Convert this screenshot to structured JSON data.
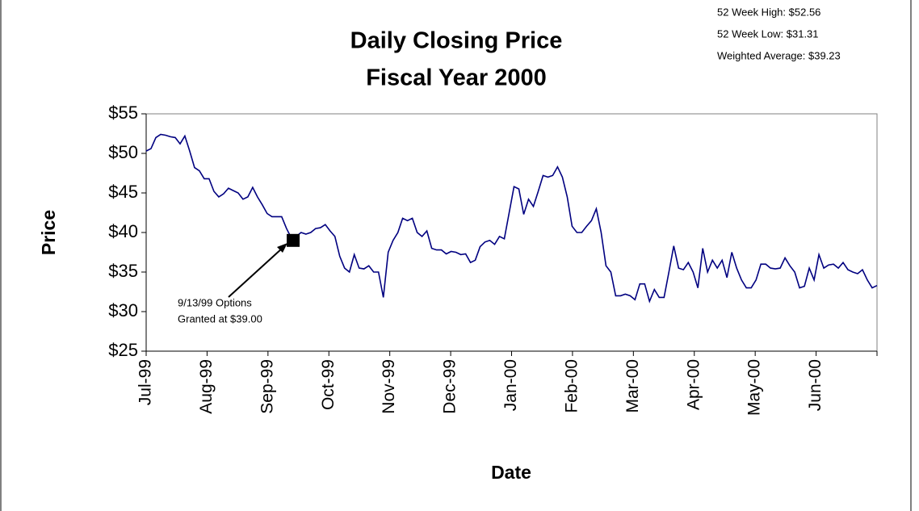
{
  "chart_data": {
    "type": "line",
    "title": [
      "Daily Closing Price",
      "Fiscal Year 2000"
    ],
    "stats": [
      "52 Week High: $52.56",
      "52 Week Low: $31.31",
      "Weighted Average: $39.23"
    ],
    "x_label": "Date",
    "y_label": "Price",
    "xticks": [
      "Jul-99",
      "Aug-99",
      "Sep-99",
      "Oct-99",
      "Nov-99",
      "Dec-99",
      "Jan-00",
      "Feb-00",
      "Mar-00",
      "Apr-00",
      "May-00",
      "Jun-00"
    ],
    "ylim": [
      25,
      55
    ],
    "yticks": [
      {
        "value": 25,
        "label": "$25"
      },
      {
        "value": 30,
        "label": "$30"
      },
      {
        "value": 35,
        "label": "$35"
      },
      {
        "value": 40,
        "label": "$40"
      },
      {
        "value": 45,
        "label": "$45"
      },
      {
        "value": 50,
        "label": "$50"
      },
      {
        "value": 55,
        "label": "$55"
      }
    ],
    "color": "#000080",
    "values": [
      50.3,
      50.6,
      52.0,
      52.4,
      52.3,
      52.1,
      52.0,
      51.2,
      52.2,
      50.3,
      48.2,
      47.8,
      46.8,
      46.8,
      45.2,
      44.5,
      44.9,
      45.6,
      45.3,
      45.0,
      44.2,
      44.5,
      45.7,
      44.5,
      43.5,
      42.4,
      42.0,
      42.0,
      42.0,
      40.5,
      39.3,
      39.5,
      40.0,
      39.8,
      40.0,
      40.5,
      40.6,
      41.0,
      40.2,
      39.5,
      37.0,
      35.5,
      35.0,
      37.2,
      35.5,
      35.4,
      35.8,
      35.0,
      35.0,
      31.8,
      37.5,
      39.0,
      40.0,
      41.8,
      41.5,
      41.8,
      40.0,
      39.5,
      40.2,
      38.0,
      37.8,
      37.8,
      37.3,
      37.6,
      37.5,
      37.2,
      37.3,
      36.2,
      36.5,
      38.2,
      38.8,
      39.0,
      38.5,
      39.5,
      39.2,
      42.5,
      45.8,
      45.5,
      42.3,
      44.2,
      43.3,
      45.2,
      47.2,
      47.0,
      47.2,
      48.3,
      47.0,
      44.5,
      40.8,
      40.0,
      40.0,
      40.8,
      41.5,
      43.0,
      40.0,
      35.8,
      35.0,
      32.0,
      32.0,
      32.2,
      32.0,
      31.5,
      33.5,
      33.5,
      31.3,
      32.8,
      31.8,
      31.8,
      35.0,
      38.3,
      35.5,
      35.3,
      36.2,
      35.0,
      33.0,
      38.0,
      35.0,
      36.5,
      35.5,
      36.5,
      34.3,
      37.5,
      35.5,
      34.0,
      33.0,
      33.0,
      34.0,
      36.0,
      36.0,
      35.5,
      35.4,
      35.5,
      36.8,
      35.8,
      35.0,
      33.0,
      33.2,
      35.5,
      34.0,
      37.2,
      35.5,
      35.9,
      36.0,
      35.5,
      36.2,
      35.3,
      35.0,
      34.8,
      35.3,
      34.0,
      33.0,
      33.3
    ],
    "marker": {
      "value": 39.0,
      "annotation": [
        "9/13/99 Options",
        "Granted at $39.00"
      ]
    }
  }
}
